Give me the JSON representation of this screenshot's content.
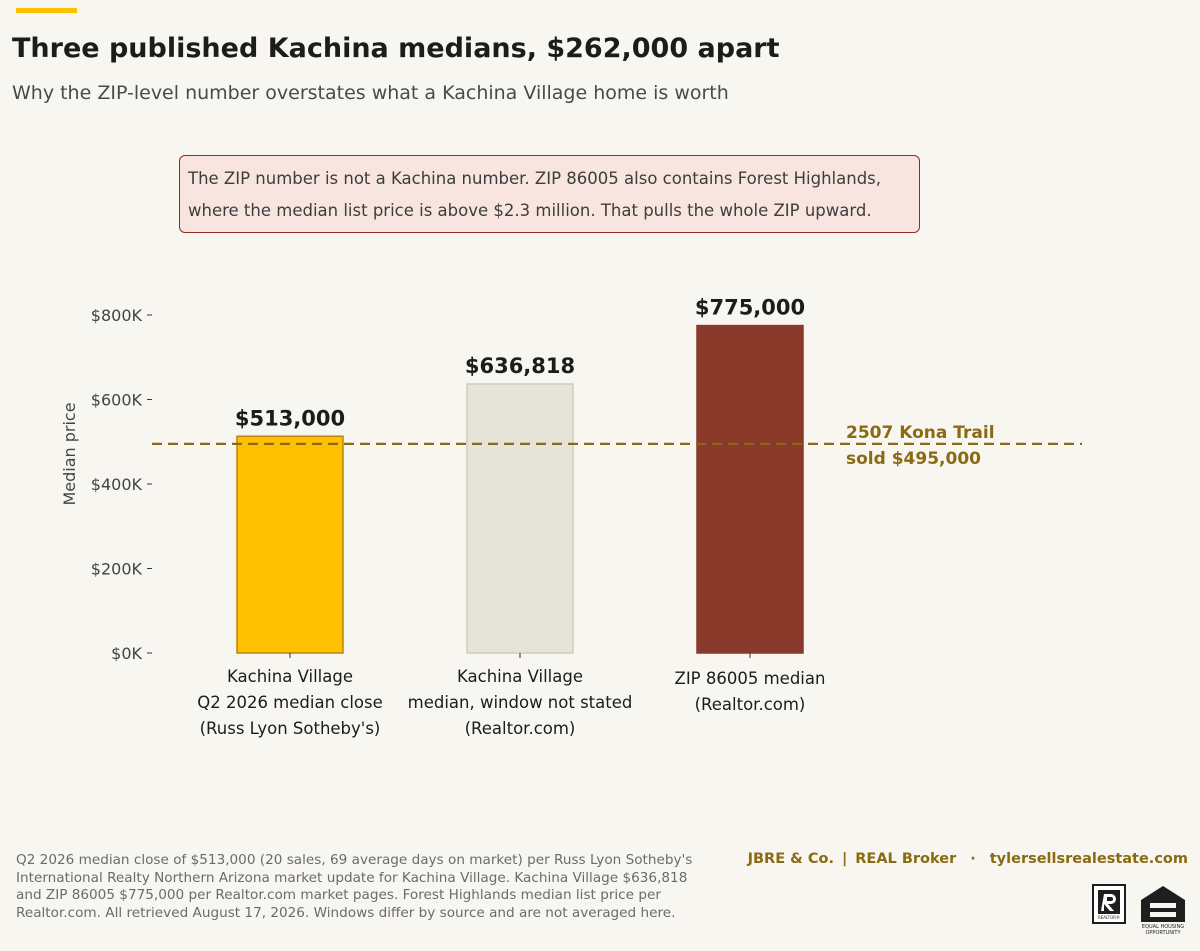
{
  "header": {
    "title": "Three published Kachina medians, $262,000 apart",
    "subtitle": "Why the ZIP-level number overstates what a Kachina Village home is worth"
  },
  "callout": {
    "line1": "The ZIP number is not a Kachina number. ZIP 86005 also contains Forest Highlands,",
    "line2": "where the median list price is above $2.3 million. That pulls the whole ZIP upward."
  },
  "chart_data": {
    "type": "bar",
    "categories": [
      [
        "Kachina Village",
        "Q2 2026 median close",
        "(Russ Lyon Sotheby's)"
      ],
      [
        "Kachina Village",
        "median, window not stated",
        "(Realtor.com)"
      ],
      [
        "ZIP 86005 median",
        "(Realtor.com)"
      ]
    ],
    "values": [
      513000,
      636818,
      775000
    ],
    "value_labels": [
      "$513,000",
      "$636,818",
      "$775,000"
    ],
    "colors": [
      "#ffc000",
      "#e6e3d8",
      "#8a3a2b"
    ],
    "edge_colors": [
      "#b8860b",
      "#d0ccbd",
      "#8a3a2b"
    ],
    "ylabel": "Median price",
    "ylim": [
      0,
      800000
    ],
    "yticks": [
      0,
      200000,
      400000,
      600000,
      800000
    ],
    "ytick_labels": [
      "$0K",
      "$200K",
      "$400K",
      "$600K",
      "$800K"
    ],
    "reference_line": {
      "value": 495000,
      "label_line1": "2507 Kona Trail",
      "label_line2": "sold $495,000",
      "color": "#8a6a12"
    },
    "grid": false
  },
  "footer": {
    "footnote": "Q2 2026 median close of $513,000 (20 sales, 69 average days on market) per Russ Lyon Sotheby's International Realty Northern Arizona market update for Kachina Village. Kachina Village $636,818 and ZIP 86005 $775,000 per Realtor.com market pages. Forest Highlands median list price per Realtor.com. All retrieved August 17, 2026. Windows differ by source and are not averaged here.",
    "brand_name": "JBRE & Co.",
    "brokerage": "REAL Broker",
    "website": "tylersellsrealestate.com",
    "sep1": "|",
    "sep2": "·",
    "realtor_badge_text": "REALTOR®",
    "eho_text1": "EQUAL HOUSING",
    "eho_text2": "OPPORTUNITY"
  }
}
